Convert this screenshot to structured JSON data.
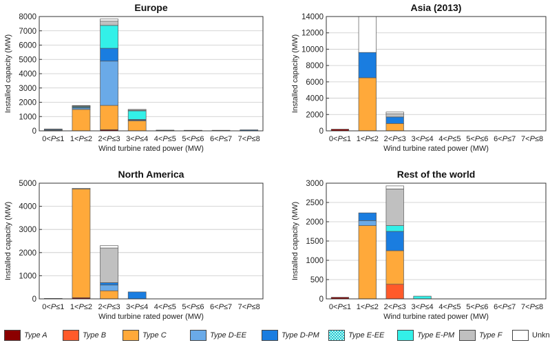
{
  "chart_data": [
    {
      "type": "bar",
      "stacked": true,
      "title": "Europe",
      "xlabel": "Wind turbine rated power (MW)",
      "ylabel": "Installed capacity (MW)",
      "ylim": [
        0,
        8000
      ],
      "yticks": [
        0,
        1000,
        2000,
        3000,
        4000,
        5000,
        6000,
        7000,
        8000
      ],
      "categories": [
        "0<P≤1",
        "1<P≤2",
        "2<P≤3",
        "3<P≤4",
        "4<P≤5",
        "5<P≤6",
        "6<P≤7",
        "7<P≤8"
      ],
      "grid": true,
      "series": [
        {
          "name": "Type A",
          "values": [
            20,
            0,
            80,
            0,
            0,
            0,
            0,
            0
          ]
        },
        {
          "name": "Type B",
          "values": [
            0,
            0,
            0,
            0,
            0,
            0,
            0,
            0
          ]
        },
        {
          "name": "Type C",
          "values": [
            30,
            1500,
            1700,
            700,
            0,
            0,
            0,
            0
          ]
        },
        {
          "name": "Type D-EE",
          "values": [
            60,
            100,
            3100,
            50,
            20,
            20,
            0,
            20
          ]
        },
        {
          "name": "Type D-PM",
          "values": [
            20,
            50,
            900,
            50,
            30,
            20,
            40,
            50
          ]
        },
        {
          "name": "Type E-EE",
          "values": [
            0,
            0,
            0,
            0,
            0,
            0,
            0,
            0
          ]
        },
        {
          "name": "Type E-PM",
          "values": [
            0,
            50,
            1600,
            600,
            0,
            0,
            0,
            0
          ]
        },
        {
          "name": "Type F",
          "values": [
            0,
            50,
            300,
            50,
            0,
            0,
            0,
            0
          ]
        },
        {
          "name": "Unknown",
          "values": [
            0,
            20,
            150,
            50,
            0,
            0,
            0,
            0
          ]
        }
      ]
    },
    {
      "type": "bar",
      "stacked": true,
      "title": "Asia (2013)",
      "xlabel": "Wind turbine rated power (MW)",
      "ylabel": "Installed capacity (MW)",
      "ylim": [
        0,
        14000
      ],
      "yticks": [
        0,
        2000,
        4000,
        6000,
        8000,
        10000,
        12000,
        14000
      ],
      "categories": [
        "0<P≤1",
        "1<P≤2",
        "2<P≤3",
        "3<P≤4",
        "4<P≤5",
        "5<P≤6",
        "6<P≤7",
        "7<P≤8"
      ],
      "grid": true,
      "series": [
        {
          "name": "Type A",
          "values": [
            200,
            0,
            0,
            0,
            0,
            0,
            0,
            0
          ]
        },
        {
          "name": "Type B",
          "values": [
            0,
            0,
            0,
            0,
            0,
            0,
            0,
            0
          ]
        },
        {
          "name": "Type C",
          "values": [
            0,
            6500,
            900,
            0,
            0,
            0,
            0,
            0
          ]
        },
        {
          "name": "Type D-EE",
          "values": [
            0,
            0,
            0,
            0,
            0,
            0,
            0,
            0
          ]
        },
        {
          "name": "Type D-PM",
          "values": [
            0,
            3100,
            800,
            0,
            0,
            0,
            0,
            0
          ]
        },
        {
          "name": "Type E-EE",
          "values": [
            0,
            0,
            0,
            0,
            0,
            0,
            0,
            0
          ]
        },
        {
          "name": "Type E-PM",
          "values": [
            0,
            0,
            0,
            0,
            0,
            0,
            0,
            0
          ]
        },
        {
          "name": "Type F",
          "values": [
            0,
            0,
            400,
            0,
            0,
            0,
            0,
            0
          ]
        },
        {
          "name": "Unknown",
          "values": [
            0,
            4400,
            200,
            0,
            0,
            0,
            0,
            0
          ]
        }
      ]
    },
    {
      "type": "bar",
      "stacked": true,
      "title": "North America",
      "xlabel": "Wind turbine rated power (MW)",
      "ylabel": "Installed capacity (MW)",
      "ylim": [
        0,
        5000
      ],
      "yticks": [
        0,
        1000,
        2000,
        3000,
        4000,
        5000
      ],
      "categories": [
        "0<P≤1",
        "1<P≤2",
        "2<P≤3",
        "3<P≤4",
        "4<P≤5",
        "5<P≤6",
        "6<P≤7",
        "7<P≤8"
      ],
      "grid": true,
      "series": [
        {
          "name": "Type A",
          "values": [
            20,
            50,
            0,
            0,
            0,
            0,
            0,
            0
          ]
        },
        {
          "name": "Type B",
          "values": [
            0,
            0,
            0,
            0,
            0,
            0,
            0,
            0
          ]
        },
        {
          "name": "Type C",
          "values": [
            0,
            4700,
            350,
            0,
            0,
            0,
            0,
            0
          ]
        },
        {
          "name": "Type D-EE",
          "values": [
            0,
            0,
            250,
            0,
            0,
            0,
            0,
            0
          ]
        },
        {
          "name": "Type D-PM",
          "values": [
            0,
            0,
            100,
            300,
            0,
            0,
            0,
            0
          ]
        },
        {
          "name": "Type E-EE",
          "values": [
            0,
            0,
            0,
            0,
            0,
            0,
            0,
            0
          ]
        },
        {
          "name": "Type E-PM",
          "values": [
            0,
            0,
            0,
            0,
            0,
            0,
            0,
            0
          ]
        },
        {
          "name": "Type F",
          "values": [
            0,
            0,
            1500,
            0,
            0,
            0,
            0,
            0
          ]
        },
        {
          "name": "Unknown",
          "values": [
            0,
            30,
            100,
            0,
            0,
            0,
            0,
            0
          ]
        }
      ]
    },
    {
      "type": "bar",
      "stacked": true,
      "title": "Rest of the world",
      "xlabel": "Wind turbine rated power (MW)",
      "ylabel": "Installed capacity (MW)",
      "ylim": [
        0,
        3000
      ],
      "yticks": [
        0,
        500,
        1000,
        1500,
        2000,
        2500,
        3000
      ],
      "categories": [
        "0<P≤1",
        "1<P≤2",
        "2<P≤3",
        "3<P≤4",
        "4<P≤5",
        "5<P≤6",
        "6<P≤7",
        "7<P≤8"
      ],
      "grid": true,
      "series": [
        {
          "name": "Type A",
          "values": [
            40,
            0,
            0,
            0,
            0,
            0,
            0,
            0
          ]
        },
        {
          "name": "Type B",
          "values": [
            0,
            0,
            380,
            0,
            0,
            0,
            0,
            0
          ]
        },
        {
          "name": "Type C",
          "values": [
            0,
            1900,
            870,
            0,
            0,
            0,
            0,
            0
          ]
        },
        {
          "name": "Type D-EE",
          "values": [
            0,
            130,
            0,
            0,
            0,
            0,
            0,
            0
          ]
        },
        {
          "name": "Type D-PM",
          "values": [
            0,
            200,
            500,
            0,
            0,
            0,
            0,
            0
          ]
        },
        {
          "name": "Type E-EE",
          "values": [
            0,
            0,
            0,
            0,
            0,
            0,
            0,
            0
          ]
        },
        {
          "name": "Type E-PM",
          "values": [
            0,
            0,
            150,
            70,
            0,
            0,
            0,
            0
          ]
        },
        {
          "name": "Type F",
          "values": [
            0,
            0,
            950,
            0,
            0,
            0,
            0,
            0
          ]
        },
        {
          "name": "Unknown",
          "values": [
            0,
            0,
            80,
            0,
            0,
            0,
            0,
            0
          ]
        }
      ]
    }
  ],
  "legend": [
    {
      "name": "Type A",
      "color": "#8b0000"
    },
    {
      "name": "Type B",
      "color": "#ff5a2a"
    },
    {
      "name": "Type C",
      "color": "#ffa93a"
    },
    {
      "name": "Type D-EE",
      "color": "#6aaae8"
    },
    {
      "name": "Type D-PM",
      "color": "#1a7de0"
    },
    {
      "name": "Type E-EE",
      "color": "#44e0e0",
      "pattern": "checker"
    },
    {
      "name": "Type E-PM",
      "color": "#33f0e8"
    },
    {
      "name": "Type F",
      "color": "#c0c0c0"
    },
    {
      "name": "Unknown",
      "color": "#ffffff"
    }
  ]
}
